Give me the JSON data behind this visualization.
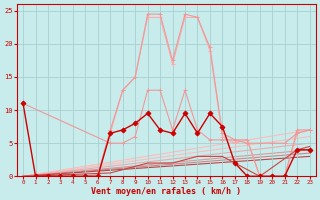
{
  "background_color": "#c8ecec",
  "grid_color": "#a8d0d0",
  "xlabel": "Vent moyen/en rafales ( km/h )",
  "xlabel_color": "#cc0000",
  "tick_color": "#cc0000",
  "ylim": [
    0,
    26
  ],
  "xlim": [
    -0.5,
    23.5
  ],
  "yticks": [
    0,
    5,
    10,
    15,
    20,
    25
  ],
  "xticks": [
    0,
    1,
    2,
    3,
    4,
    5,
    6,
    7,
    8,
    9,
    10,
    11,
    12,
    13,
    14,
    15,
    16,
    17,
    18,
    19,
    20,
    21,
    22,
    23
  ],
  "series": [
    {
      "x": [
        0,
        1,
        2,
        3,
        4,
        5,
        6,
        7,
        8,
        9,
        10,
        11,
        12,
        13,
        14,
        15,
        16,
        17,
        18,
        19,
        20,
        21,
        22,
        23
      ],
      "y": [
        0,
        0,
        0,
        0,
        0,
        0,
        0,
        6.5,
        13,
        15,
        24,
        24,
        17,
        24,
        24,
        19,
        6,
        5,
        5.5,
        0,
        0,
        0,
        6.5,
        7
      ],
      "color": "#ffaaaa",
      "linewidth": 0.8,
      "marker": "+",
      "markersize": 3.5,
      "zorder": 2
    },
    {
      "x": [
        0,
        1,
        2,
        3,
        4,
        5,
        6,
        7,
        8,
        9,
        10,
        11,
        12,
        13,
        14,
        15,
        16,
        17,
        18,
        19,
        20,
        21,
        22,
        23
      ],
      "y": [
        0,
        0,
        0,
        0,
        0,
        0,
        0.3,
        7,
        13,
        15,
        24.5,
        24.5,
        17.5,
        24.5,
        24,
        19.5,
        6.5,
        5.5,
        5.5,
        0,
        0,
        0,
        7,
        7
      ],
      "color": "#ee9999",
      "linewidth": 0.8,
      "marker": "+",
      "markersize": 3.5,
      "zorder": 2
    },
    {
      "x": [
        0,
        1,
        2,
        3,
        4,
        5,
        6,
        7,
        8,
        9,
        10,
        11,
        12,
        13,
        14,
        15,
        16,
        17,
        18,
        19,
        20,
        21,
        22,
        23
      ],
      "y": [
        11,
        0,
        0,
        0,
        0,
        0,
        0,
        6.5,
        7,
        8,
        9.5,
        7,
        6.5,
        9.5,
        6.5,
        9.5,
        7.5,
        2,
        0,
        0,
        0,
        0,
        4,
        4
      ],
      "color": "#cc0000",
      "linewidth": 1.0,
      "marker": "D",
      "markersize": 2.5,
      "zorder": 4
    },
    {
      "x": [
        0,
        23
      ],
      "y": [
        0,
        7
      ],
      "color": "#ffbbbb",
      "linewidth": 0.8,
      "marker": null,
      "markersize": 0,
      "zorder": 1
    },
    {
      "x": [
        0,
        23
      ],
      "y": [
        0,
        6
      ],
      "color": "#ffbbbb",
      "linewidth": 0.8,
      "marker": null,
      "markersize": 0,
      "zorder": 1
    },
    {
      "x": [
        0,
        23
      ],
      "y": [
        0,
        5
      ],
      "color": "#eeaaaa",
      "linewidth": 0.8,
      "marker": null,
      "markersize": 0,
      "zorder": 1
    },
    {
      "x": [
        0,
        23
      ],
      "y": [
        0,
        4
      ],
      "color": "#dd9999",
      "linewidth": 0.8,
      "marker": null,
      "markersize": 0,
      "zorder": 1
    },
    {
      "x": [
        0,
        23
      ],
      "y": [
        0,
        3.5
      ],
      "color": "#cc8888",
      "linewidth": 0.8,
      "marker": null,
      "markersize": 0,
      "zorder": 1
    },
    {
      "x": [
        0,
        23
      ],
      "y": [
        0,
        3
      ],
      "color": "#bb4444",
      "linewidth": 0.8,
      "marker": null,
      "markersize": 0,
      "zorder": 1
    },
    {
      "x": [
        0,
        7,
        8,
        9,
        10,
        11,
        12,
        13,
        14,
        15,
        16,
        17,
        18,
        19,
        20,
        21,
        22,
        23
      ],
      "y": [
        11,
        5,
        5,
        6,
        13,
        13,
        7,
        13,
        7,
        5.5,
        5.5,
        5.5,
        5,
        5,
        5,
        5,
        6.5,
        7
      ],
      "color": "#ee9999",
      "linewidth": 0.8,
      "marker": "+",
      "markersize": 3,
      "zorder": 3
    },
    {
      "x": [
        0,
        7,
        8,
        9,
        10,
        11,
        12,
        13,
        14,
        15,
        16,
        17,
        19,
        22,
        23
      ],
      "y": [
        0,
        0.5,
        1,
        1.5,
        2,
        2,
        2,
        2.5,
        3,
        3,
        3,
        2,
        0,
        4,
        4.5
      ],
      "color": "#cc4444",
      "linewidth": 0.8,
      "marker": null,
      "markersize": 0,
      "zorder": 2
    }
  ]
}
